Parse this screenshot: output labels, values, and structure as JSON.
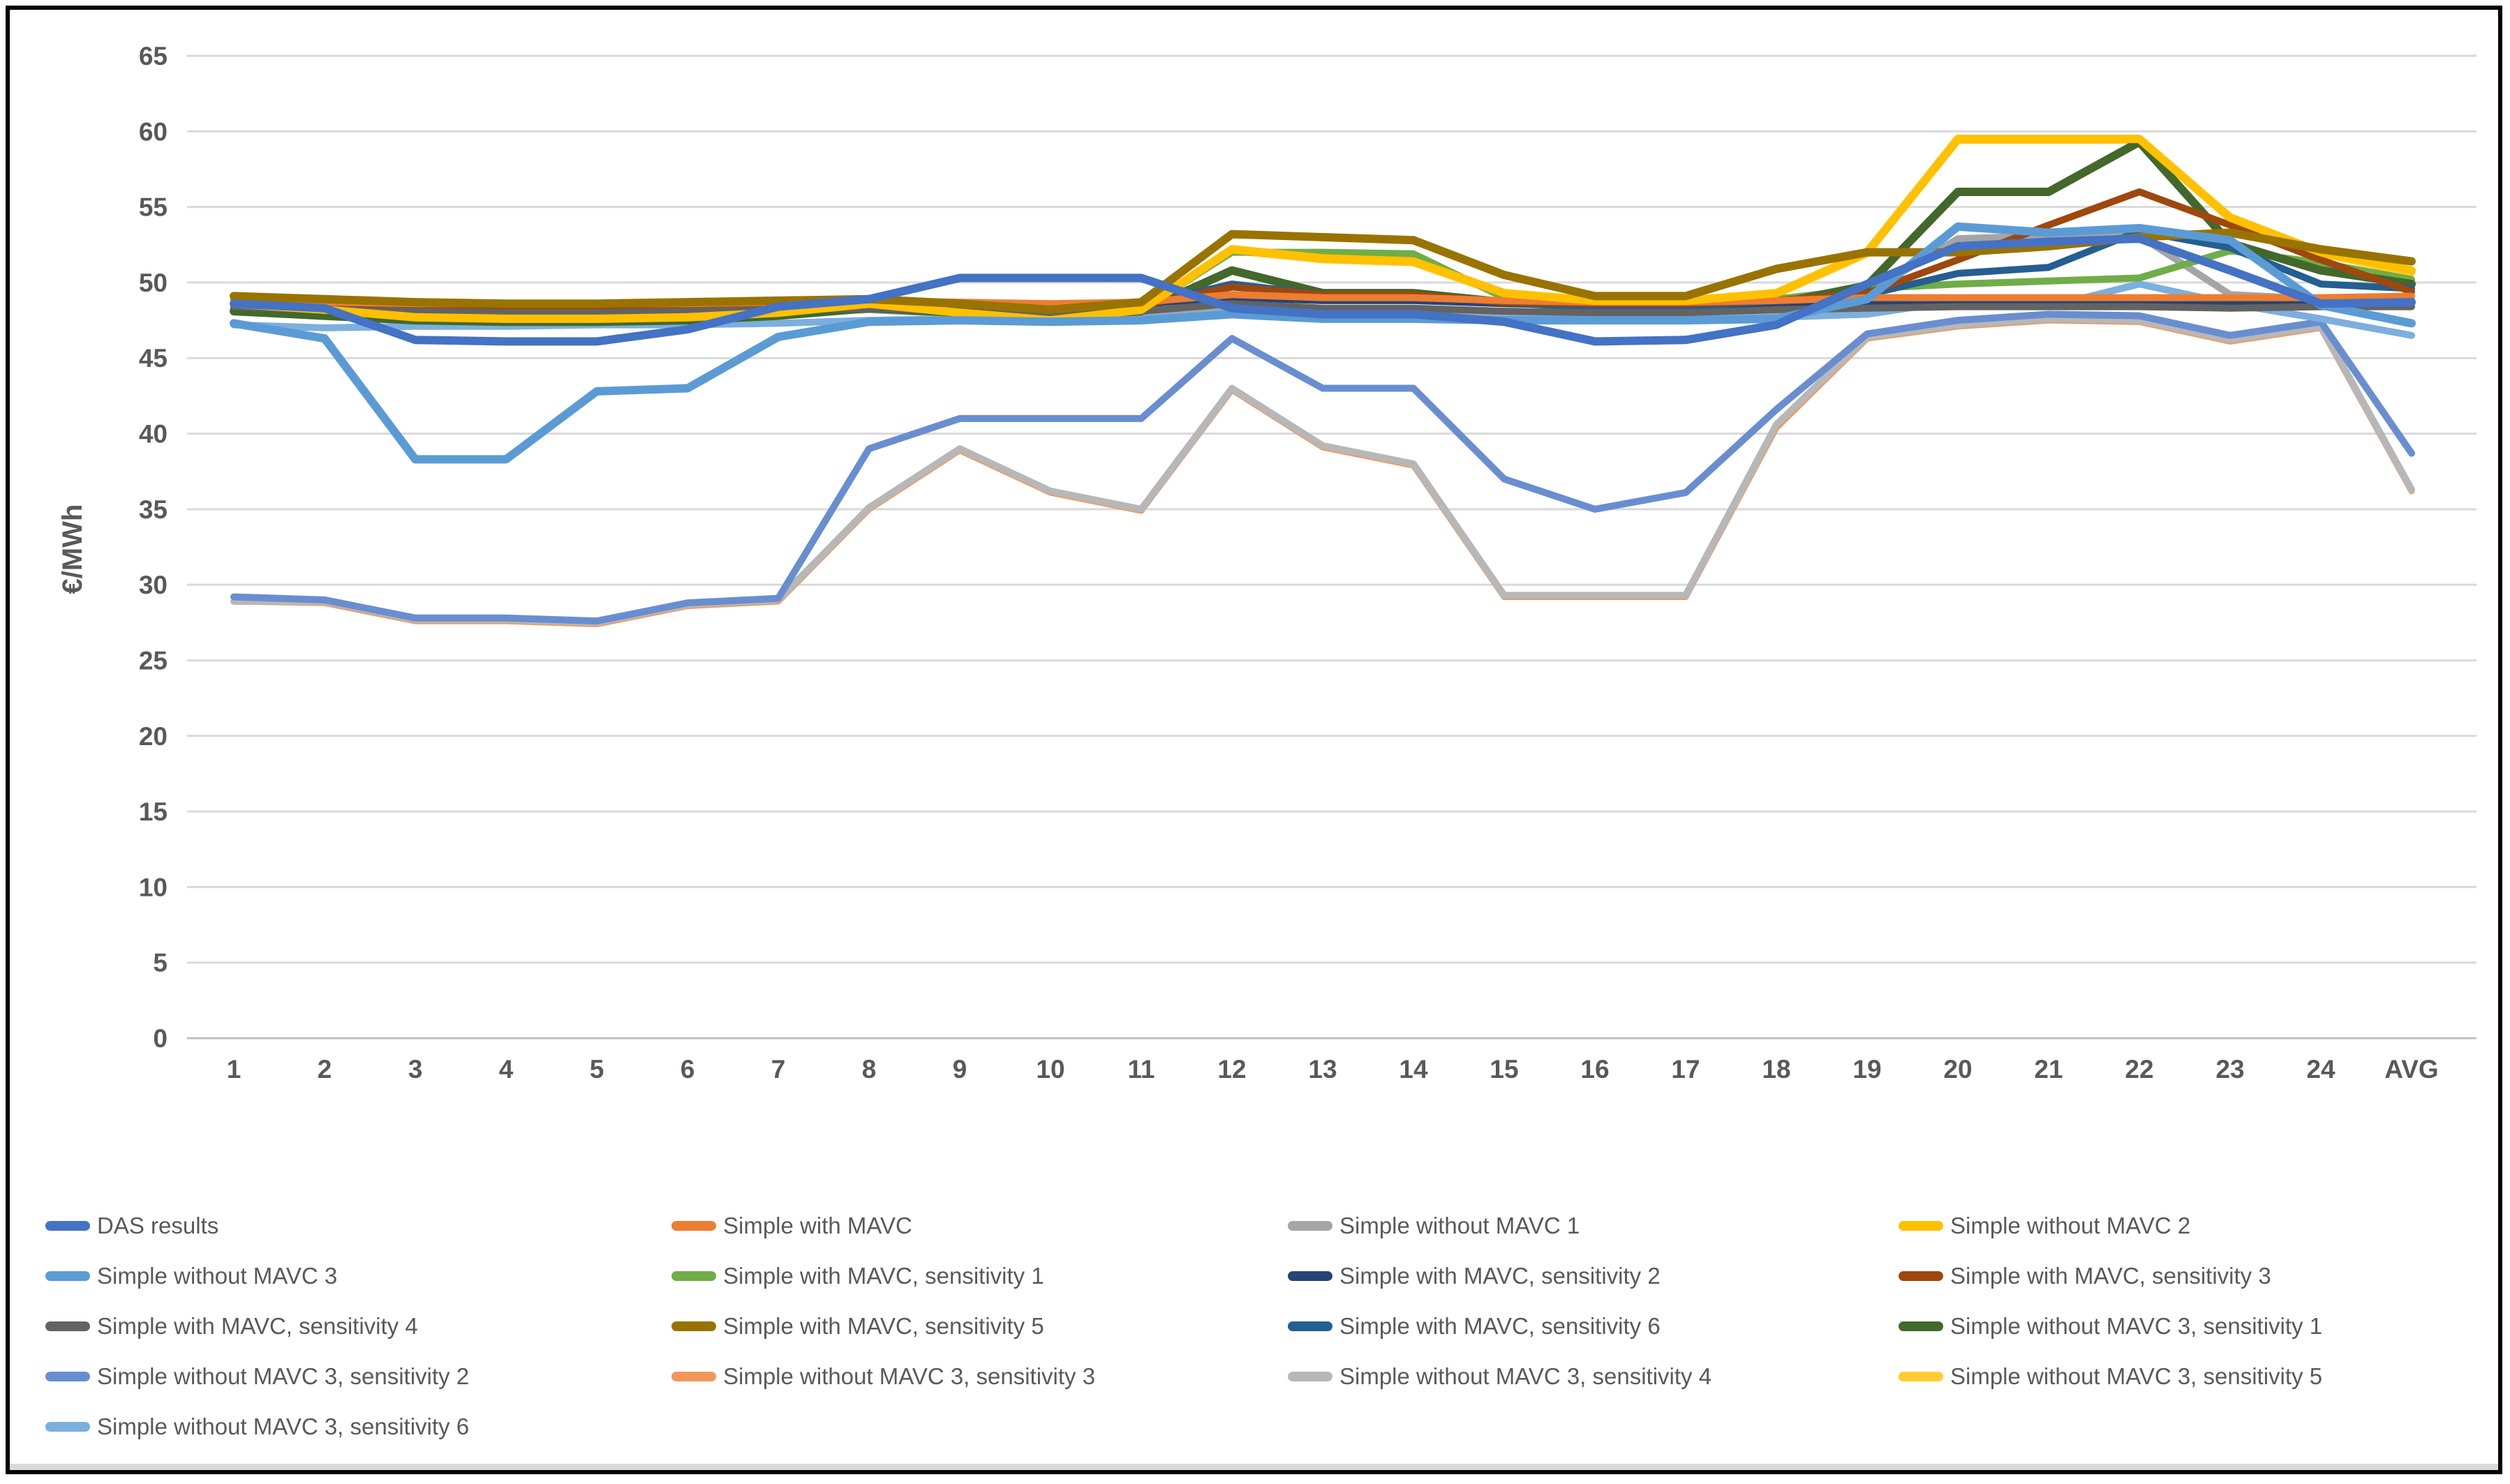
{
  "figure": {
    "background": "#FFFFFF",
    "border_color": "#000000",
    "axis_text_color": "#595959",
    "gridline_color": "#D9D9D9",
    "axisline_color": "#BFBFBF"
  },
  "chart_data": {
    "type": "line",
    "title": "",
    "xlabel": "",
    "ylabel": "€/MWh",
    "ylim": [
      0,
      65
    ],
    "grid": true,
    "legend_position": "bottom",
    "x_labels": [
      "1",
      "2",
      "3",
      "4",
      "5",
      "6",
      "7",
      "8",
      "9",
      "10",
      "11",
      "12",
      "13",
      "14",
      "15",
      "16",
      "17",
      "18",
      "19",
      "20",
      "21",
      "22",
      "23",
      "24",
      "AVG"
    ],
    "y_ticks": [
      0,
      5,
      10,
      15,
      20,
      25,
      30,
      35,
      40,
      45,
      50,
      55,
      60,
      65
    ],
    "series": [
      {
        "name": "Simple without MAVC 3, sensitivity 3",
        "color": "#F1975A",
        "width": 9,
        "values": [
          28.9,
          28.8,
          27.6,
          27.6,
          27.4,
          28.6,
          28.9,
          35.0,
          38.9,
          36.1,
          34.9,
          42.9,
          39.1,
          37.9,
          29.2,
          29.2,
          29.2,
          40.4,
          46.3,
          47.1,
          47.5,
          47.4,
          46.1,
          47.0,
          36.2
        ]
      },
      {
        "name": "Simple without MAVC 3, sensitivity 4",
        "color": "#B7B7B7",
        "width": 10,
        "values": [
          28.9,
          28.9,
          27.7,
          27.7,
          27.5,
          28.7,
          29.0,
          35.1,
          39.0,
          36.2,
          35.0,
          43.0,
          39.2,
          38.0,
          29.3,
          29.3,
          29.3,
          40.6,
          46.4,
          47.2,
          47.6,
          47.5,
          46.2,
          47.1,
          36.3
        ]
      },
      {
        "name": "Simple without MAVC 3, sensitivity 2",
        "color": "#698ED0",
        "width": 10,
        "values": [
          29.2,
          29.0,
          27.8,
          27.8,
          27.6,
          28.8,
          29.1,
          39.0,
          41.0,
          41.0,
          41.0,
          46.3,
          43.0,
          43.0,
          37.0,
          35.0,
          36.1,
          41.6,
          46.6,
          47.5,
          47.9,
          47.8,
          46.5,
          47.4,
          38.7
        ]
      },
      {
        "name": "Simple without MAVC 1",
        "color": "#A5A5A5",
        "width": 10,
        "values": [
          48.2,
          48.0,
          47.9,
          47.8,
          47.8,
          47.9,
          48.0,
          48.2,
          47.9,
          47.7,
          47.9,
          48.4,
          48.1,
          48.1,
          47.9,
          47.8,
          47.8,
          48.0,
          49.3,
          52.9,
          53.1,
          53.1,
          49.2,
          48.9,
          48.9
        ]
      },
      {
        "name": "Simple without MAVC 3, sensitivity 6",
        "color": "#7CAFDD",
        "width": 10,
        "values": [
          47.2,
          47.0,
          47.1,
          47.1,
          47.2,
          47.2,
          47.3,
          47.5,
          47.6,
          47.5,
          47.6,
          48.0,
          47.7,
          47.7,
          47.6,
          47.6,
          47.6,
          47.7,
          47.9,
          48.8,
          48.4,
          49.9,
          48.6,
          47.6,
          46.5
        ]
      },
      {
        "name": "Simple without MAVC 3, sensitivity 5",
        "color": "#FFCD33",
        "width": 10,
        "values": [
          48.5,
          48.1,
          47.6,
          47.5,
          47.5,
          47.6,
          47.9,
          48.5,
          47.9,
          47.4,
          48.1,
          52.1,
          51.5,
          51.3,
          49.2,
          48.7,
          48.7,
          49.2,
          51.9,
          59.4,
          59.4,
          59.4,
          54.2,
          51.9,
          50.6
        ]
      },
      {
        "name": "Simple with MAVC, sensitivity 1",
        "color": "#70AD47",
        "width": 10,
        "values": [
          48.3,
          48.0,
          47.8,
          47.7,
          47.7,
          47.8,
          48.0,
          48.4,
          48.1,
          47.9,
          48.2,
          52.0,
          52.0,
          51.9,
          49.0,
          48.6,
          48.6,
          48.9,
          49.6,
          49.9,
          50.1,
          50.3,
          52.1,
          51.3,
          50.2
        ]
      },
      {
        "name": "Simple without MAVC 3, sensitivity 1",
        "color": "#43682B",
        "width": 12,
        "values": [
          48.1,
          47.8,
          47.5,
          47.4,
          47.4,
          47.5,
          47.8,
          48.3,
          48.0,
          47.8,
          48.1,
          50.8,
          49.3,
          49.3,
          48.7,
          48.4,
          48.4,
          48.6,
          49.8,
          56.0,
          56.0,
          59.3,
          52.6,
          50.8,
          49.9
        ]
      },
      {
        "name": "Simple with MAVC, sensitivity 2",
        "color": "#264478",
        "width": 10,
        "values": [
          48.8,
          48.6,
          48.5,
          48.5,
          48.5,
          48.5,
          48.6,
          48.7,
          48.6,
          48.5,
          48.6,
          49.0,
          48.8,
          48.8,
          48.6,
          48.5,
          48.5,
          48.6,
          48.7,
          48.7,
          48.7,
          48.8,
          48.6,
          48.6,
          48.6
        ]
      },
      {
        "name": "Simple with MAVC, sensitivity 6",
        "color": "#255E91",
        "width": 10,
        "values": [
          48.7,
          48.5,
          48.4,
          48.3,
          48.3,
          48.4,
          48.5,
          48.7,
          48.5,
          48.3,
          48.5,
          49.9,
          49.2,
          49.2,
          48.7,
          48.4,
          48.4,
          48.8,
          49.2,
          50.6,
          51.0,
          53.4,
          52.3,
          49.9,
          49.6
        ]
      },
      {
        "name": "Simple with MAVC, sensitivity 3",
        "color": "#9E480E",
        "width": 10,
        "values": [
          48.9,
          48.7,
          48.5,
          48.4,
          48.4,
          48.5,
          48.6,
          48.7,
          48.4,
          48.1,
          48.5,
          49.7,
          49.2,
          49.2,
          48.7,
          48.6,
          48.6,
          48.8,
          49.3,
          51.5,
          53.8,
          56.0,
          53.8,
          51.5,
          49.4
        ]
      },
      {
        "name": "Simple with MAVC",
        "color": "#ED7D31",
        "width": 10,
        "values": [
          48.9,
          48.7,
          48.6,
          48.6,
          48.6,
          48.6,
          48.7,
          48.8,
          48.7,
          48.6,
          48.7,
          49.2,
          49.0,
          49.0,
          48.8,
          48.7,
          48.7,
          48.8,
          49.0,
          49.0,
          49.0,
          49.0,
          49.0,
          49.0,
          49.1
        ]
      },
      {
        "name": "Simple with MAVC, sensitivity 4",
        "color": "#636363",
        "width": 10,
        "values": [
          48.4,
          48.2,
          48.1,
          48.0,
          48.0,
          48.1,
          48.2,
          48.3,
          48.1,
          47.9,
          48.1,
          48.6,
          48.3,
          48.3,
          48.1,
          48.0,
          48.0,
          48.2,
          48.3,
          48.4,
          48.4,
          48.4,
          48.3,
          48.4,
          48.4
        ]
      },
      {
        "name": "Simple without MAVC 2",
        "color": "#FFC000",
        "width": 12,
        "values": [
          48.6,
          48.2,
          47.7,
          47.6,
          47.6,
          47.7,
          48.0,
          48.6,
          48.0,
          47.5,
          48.2,
          52.2,
          51.6,
          51.4,
          49.3,
          48.8,
          48.8,
          49.3,
          52.0,
          59.5,
          59.5,
          59.5,
          54.3,
          52.0,
          50.8
        ]
      },
      {
        "name": "Simple with MAVC, sensitivity 5",
        "color": "#997300",
        "width": 12,
        "values": [
          49.1,
          48.9,
          48.7,
          48.6,
          48.6,
          48.7,
          48.8,
          48.9,
          48.6,
          48.2,
          48.7,
          53.2,
          53.0,
          52.8,
          50.5,
          49.1,
          49.1,
          50.9,
          52.0,
          52.0,
          52.4,
          53.0,
          53.3,
          52.2,
          51.4
        ]
      },
      {
        "name": "Simple without MAVC 3",
        "color": "#5B9BD5",
        "width": 12,
        "values": [
          47.3,
          46.3,
          38.3,
          38.3,
          42.8,
          43.0,
          46.4,
          47.4,
          47.5,
          47.4,
          47.5,
          47.9,
          47.6,
          47.6,
          47.5,
          47.5,
          47.5,
          47.6,
          48.9,
          53.7,
          53.3,
          53.6,
          52.8,
          48.5,
          47.3
        ]
      },
      {
        "name": "DAS results",
        "color": "#4472C4",
        "width": 12,
        "values": [
          48.6,
          48.3,
          46.2,
          46.1,
          46.1,
          46.9,
          48.4,
          48.9,
          50.3,
          50.3,
          50.3,
          48.3,
          47.9,
          47.9,
          47.4,
          46.1,
          46.2,
          47.2,
          49.9,
          52.4,
          52.7,
          52.9,
          50.8,
          48.6,
          48.7
        ]
      }
    ],
    "legend": [
      {
        "label": "DAS results",
        "color": "#4472C4"
      },
      {
        "label": "Simple with MAVC",
        "color": "#ED7D31"
      },
      {
        "label": "Simple without MAVC 1",
        "color": "#A5A5A5"
      },
      {
        "label": "Simple without MAVC 2",
        "color": "#FFC000"
      },
      {
        "label": "Simple without MAVC 3",
        "color": "#5B9BD5"
      },
      {
        "label": "Simple with MAVC, sensitivity 1",
        "color": "#70AD47"
      },
      {
        "label": "Simple with MAVC, sensitivity 2",
        "color": "#264478"
      },
      {
        "label": "Simple with MAVC, sensitivity 3",
        "color": "#9E480E"
      },
      {
        "label": "Simple with MAVC, sensitivity 4",
        "color": "#636363"
      },
      {
        "label": "Simple with MAVC, sensitivity 5",
        "color": "#997300"
      },
      {
        "label": "Simple with MAVC, sensitivity 6",
        "color": "#255E91"
      },
      {
        "label": "Simple without MAVC 3, sensitivity 1",
        "color": "#43682B"
      },
      {
        "label": "Simple without MAVC 3, sensitivity 2",
        "color": "#698ED0"
      },
      {
        "label": "Simple without MAVC 3, sensitivity 3",
        "color": "#F1975A"
      },
      {
        "label": "Simple without MAVC 3, sensitivity 4",
        "color": "#B7B7B7"
      },
      {
        "label": "Simple without MAVC 3, sensitivity 5",
        "color": "#FFCD33"
      },
      {
        "label": "Simple without MAVC 3, sensitivity 6",
        "color": "#7CAFDD"
      }
    ]
  }
}
